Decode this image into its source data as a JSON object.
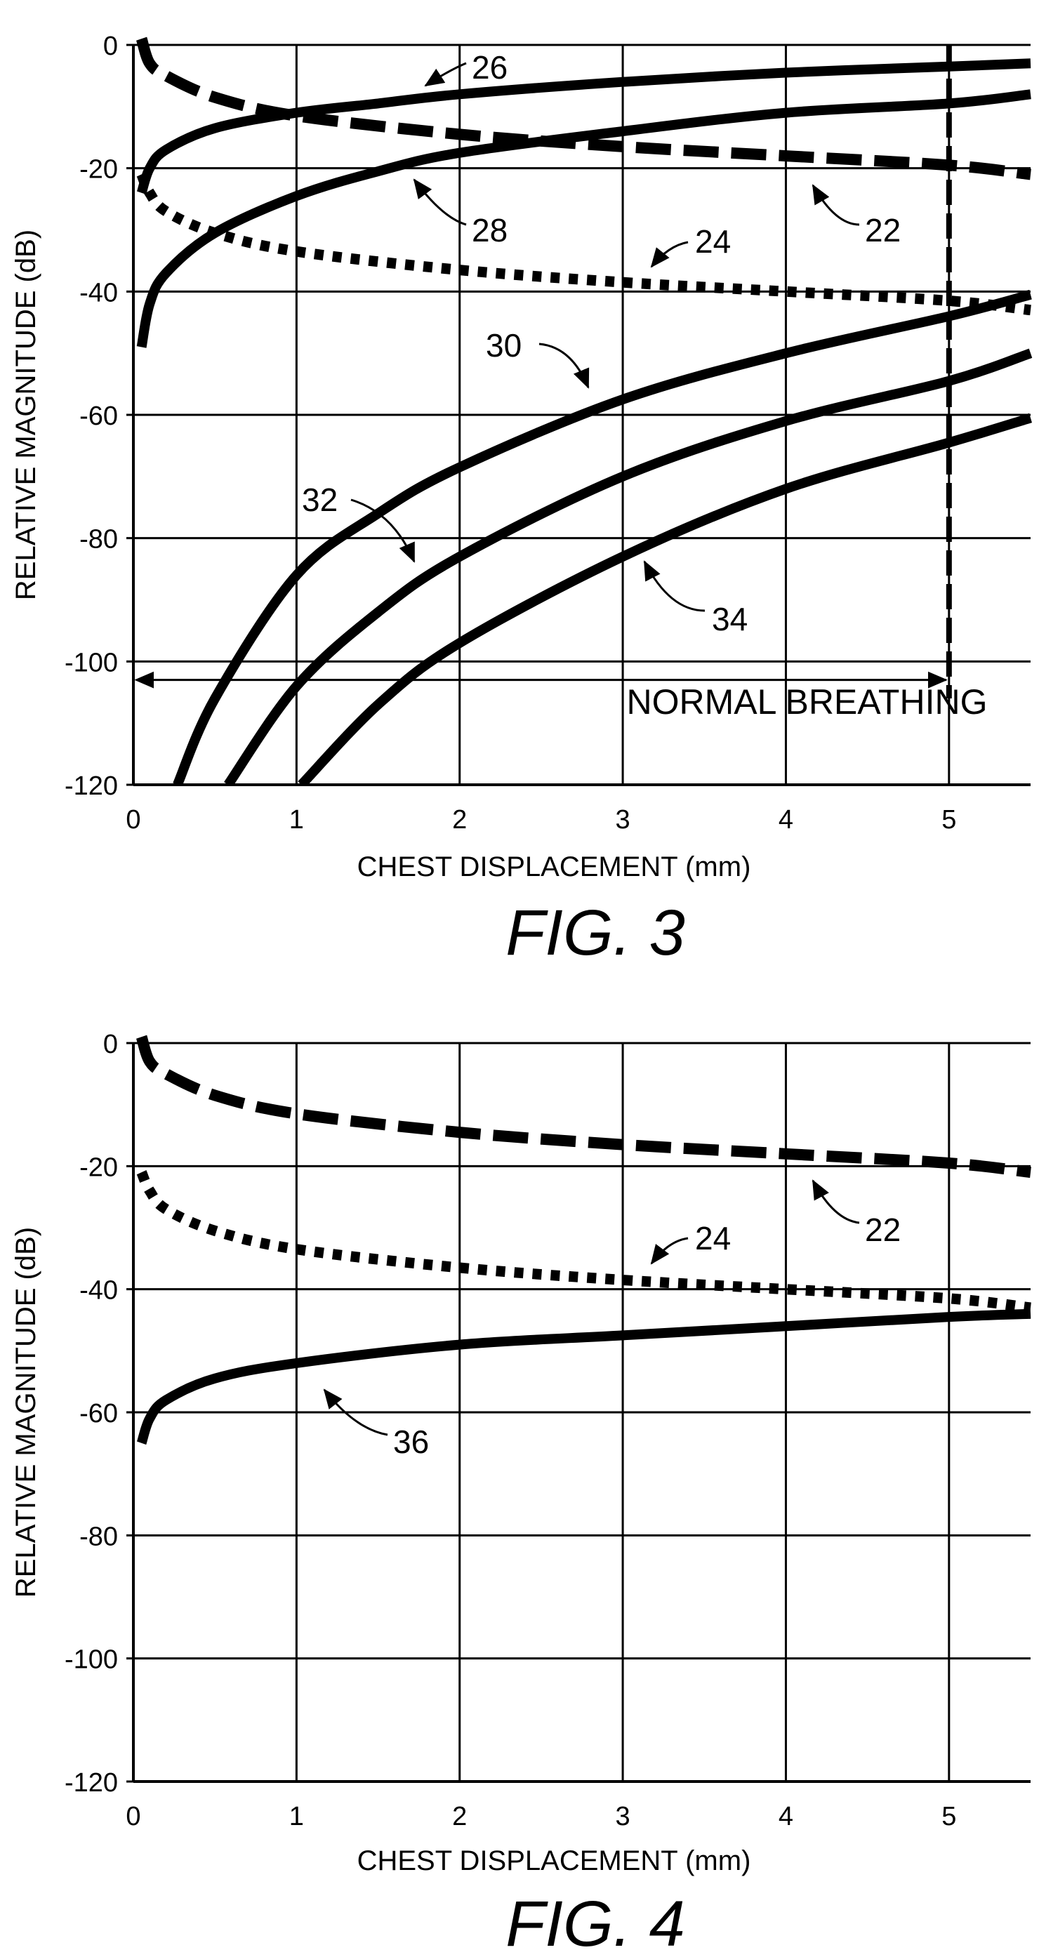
{
  "chart_data": [
    {
      "type": "line",
      "figure_label": "FIG. 3",
      "xlabel": "CHEST DISPLACEMENT (mm)",
      "ylabel": "RELATIVE MAGNITUDE (dB)",
      "xlim": [
        0,
        5.5
      ],
      "ylim": [
        -120,
        0
      ],
      "xticks": [
        "0",
        "1",
        "2",
        "3",
        "4",
        "5"
      ],
      "yticks": [
        "0",
        "-20",
        "-40",
        "-60",
        "-80",
        "-100",
        "-120"
      ],
      "grid": true,
      "series": [
        {
          "name": "22",
          "style": "dashed",
          "x": [
            0.05,
            0.1,
            0.2,
            0.5,
            1,
            2,
            3,
            4,
            5,
            5.5
          ],
          "y": [
            1,
            -3,
            -5,
            -8.5,
            -11.5,
            -14.5,
            -16.5,
            -18,
            -19.5,
            -21
          ]
        },
        {
          "name": "24",
          "style": "dotted",
          "x": [
            0.05,
            0.1,
            0.2,
            0.5,
            1,
            2,
            3,
            4,
            5,
            5.5
          ],
          "y": [
            -21,
            -24,
            -27,
            -30.5,
            -33.5,
            -36.5,
            -38.5,
            -40,
            -41.5,
            -43
          ]
        },
        {
          "name": "26",
          "style": "solid",
          "x": [
            0.05,
            0.1,
            0.2,
            0.5,
            1,
            1.5,
            2,
            3,
            4,
            5,
            5.5
          ],
          "y": [
            -24,
            -20,
            -17,
            -13.5,
            -11,
            -9.5,
            -8,
            -6,
            -4.5,
            -3.5,
            -3
          ]
        },
        {
          "name": "28",
          "style": "solid",
          "x": [
            0.05,
            0.1,
            0.2,
            0.5,
            1,
            1.5,
            2,
            3,
            4,
            5,
            5.5
          ],
          "y": [
            -49,
            -42,
            -37,
            -30.5,
            -24.5,
            -20.5,
            -17.5,
            -14,
            -11,
            -9.5,
            -8
          ]
        },
        {
          "name": "30",
          "style": "solid",
          "x": [
            0.27,
            0.5,
            1,
            1.5,
            2,
            3,
            4,
            5,
            5.5
          ],
          "y": [
            -120,
            -106,
            -86,
            -76,
            -68.5,
            -57.5,
            -50,
            -44,
            -40.5
          ]
        },
        {
          "name": "32",
          "style": "solid",
          "x": [
            0.58,
            1,
            1.5,
            2,
            3,
            4,
            5,
            5.5
          ],
          "y": [
            -120,
            -104,
            -92,
            -83,
            -70,
            -61,
            -54.5,
            -50
          ]
        },
        {
          "name": "34",
          "style": "solid",
          "x": [
            1.03,
            1.5,
            2,
            3,
            4,
            5,
            5.5
          ],
          "y": [
            -120,
            -107,
            -97,
            -83,
            -72,
            -64.5,
            -60.5
          ]
        }
      ],
      "annotations": [
        {
          "text": "NORMAL BREATHING",
          "x_range": [
            0.1,
            5
          ]
        }
      ]
    },
    {
      "type": "line",
      "figure_label": "FIG. 4",
      "xlabel": "CHEST DISPLACEMENT (mm)",
      "ylabel": "RELATIVE MAGNITUDE (dB)",
      "xlim": [
        0,
        5.5
      ],
      "ylim": [
        -120,
        0
      ],
      "xticks": [
        "0",
        "1",
        "2",
        "3",
        "4",
        "5"
      ],
      "yticks": [
        "0",
        "-20",
        "-40",
        "-60",
        "-80",
        "-100",
        "-120"
      ],
      "grid": true,
      "series": [
        {
          "name": "22",
          "style": "dashed",
          "x": [
            0.05,
            0.1,
            0.2,
            0.5,
            1,
            2,
            3,
            4,
            5,
            5.5
          ],
          "y": [
            1,
            -3,
            -5,
            -8.5,
            -11.5,
            -14.5,
            -16.5,
            -18,
            -19.5,
            -21
          ]
        },
        {
          "name": "24",
          "style": "dotted",
          "x": [
            0.05,
            0.1,
            0.2,
            0.5,
            1,
            2,
            3,
            4,
            5,
            5.5
          ],
          "y": [
            -21,
            -24,
            -27,
            -30.5,
            -33.5,
            -36.5,
            -38.5,
            -40,
            -41.5,
            -43
          ]
        },
        {
          "name": "36",
          "style": "solid",
          "x": [
            0.05,
            0.1,
            0.2,
            0.5,
            1,
            2,
            3,
            4,
            5,
            5.5
          ],
          "y": [
            -65,
            -61,
            -58,
            -54.5,
            -52,
            -49,
            -47.5,
            -46,
            -44.5,
            -44
          ]
        }
      ],
      "annotations": []
    }
  ]
}
